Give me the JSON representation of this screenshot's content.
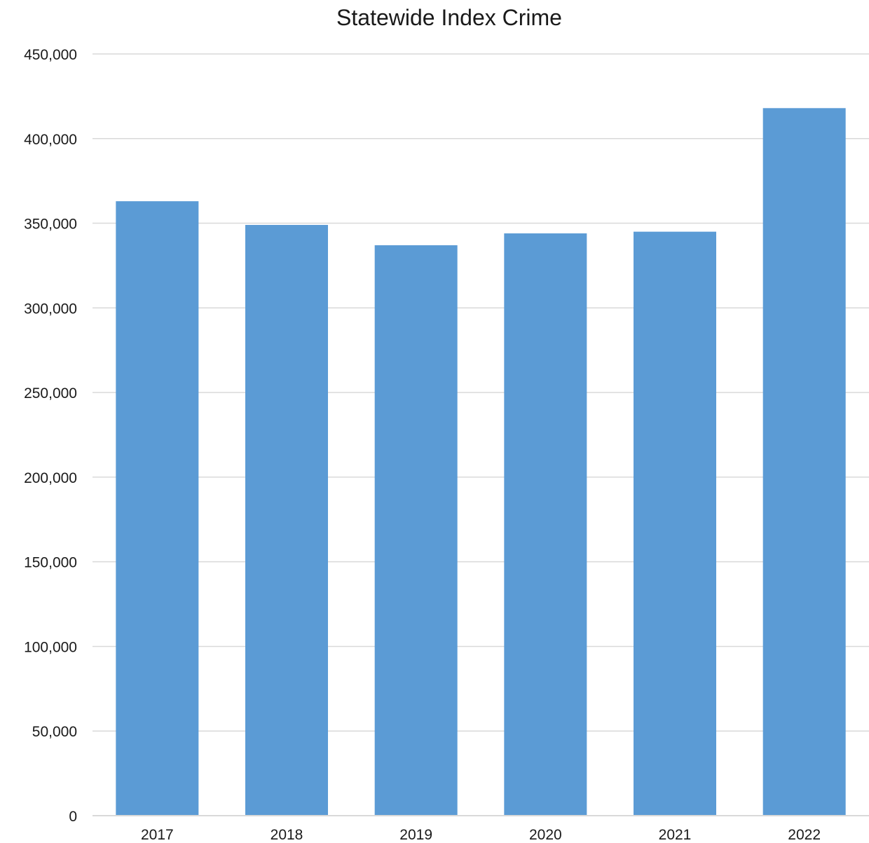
{
  "chart_data": {
    "type": "bar",
    "title": "Statewide Index Crime",
    "categories": [
      "2017",
      "2018",
      "2019",
      "2020",
      "2021",
      "2022"
    ],
    "values": [
      363000,
      349000,
      337000,
      344000,
      345000,
      418000
    ],
    "ylim": [
      0,
      450000
    ],
    "yticks": [
      0,
      50000,
      100000,
      150000,
      200000,
      250000,
      300000,
      350000,
      400000,
      450000
    ],
    "ytick_labels": [
      "0",
      "50,000",
      "100,000",
      "150,000",
      "200,000",
      "250,000",
      "300,000",
      "350,000",
      "400,000",
      "450,000"
    ],
    "xlabel": "",
    "ylabel": "",
    "grid": true,
    "legend": "none",
    "bar_color": "#5b9bd5"
  }
}
